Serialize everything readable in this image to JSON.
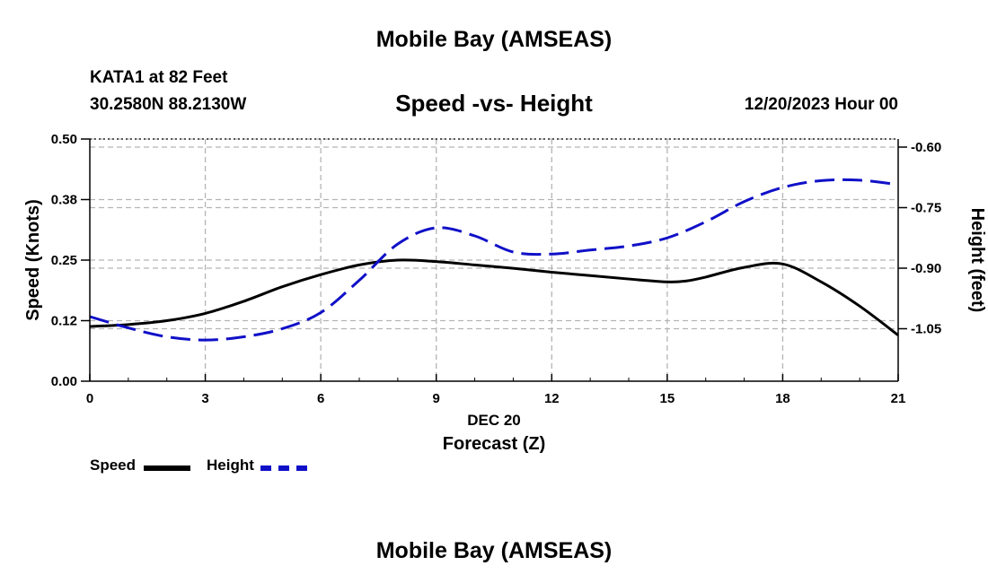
{
  "page": {
    "title_top": "Mobile Bay (AMSEAS)",
    "title_bottom": "Mobile Bay (AMSEAS)",
    "station": "KATA1 at 82 Feet",
    "coords": "30.2580N  88.2130W",
    "chart_title": "Speed -vs- Height",
    "date": "12/20/2023 Hour 00"
  },
  "legend": {
    "speed_label": "Speed",
    "height_label": "Height"
  },
  "colors": {
    "speed": "#000000",
    "height": "#1010c8",
    "grid": "#b4b4b4"
  },
  "chart_data": {
    "type": "line",
    "title": "Speed -vs- Height",
    "xlabel": "Forecast (Z)",
    "xsublabel": "DEC 20",
    "ylabel": "Speed (Knots)",
    "y2label": "Height (feet)",
    "xlim": [
      0,
      21
    ],
    "ylim": [
      0,
      0.5
    ],
    "y2lim": [
      -1.18,
      -0.58
    ],
    "x_ticks": [
      0,
      3,
      6,
      9,
      12,
      15,
      18,
      21
    ],
    "x_tick_labels": [
      "0",
      "3",
      "6",
      "9",
      "12",
      "15",
      "18",
      "21"
    ],
    "y_ticks": [
      0,
      0.125,
      0.25,
      0.375,
      0.5
    ],
    "y_tick_labels": [
      "0.00",
      "0.12",
      "0.25",
      "0.38",
      "0.50"
    ],
    "y2_ticks": [
      -1.05,
      -0.9,
      -0.75,
      -0.6
    ],
    "y2_tick_labels": [
      "-1.05",
      "-0.90",
      "-0.75",
      "-0.60"
    ],
    "grid": true,
    "series": [
      {
        "name": "Speed",
        "axis": "left",
        "style": "solid",
        "x": [
          0,
          1,
          2,
          3,
          4,
          5,
          6,
          7,
          8,
          9,
          10,
          11,
          12,
          13,
          14,
          15,
          15.5,
          16,
          17,
          18,
          19,
          20,
          21
        ],
        "values": [
          0.113,
          0.117,
          0.125,
          0.14,
          0.165,
          0.195,
          0.22,
          0.24,
          0.25,
          0.247,
          0.24,
          0.233,
          0.225,
          0.218,
          0.211,
          0.205,
          0.207,
          0.215,
          0.235,
          0.242,
          0.205,
          0.155,
          0.095
        ]
      },
      {
        "name": "Height",
        "axis": "right",
        "style": "dashed",
        "x": [
          0,
          1,
          2,
          3,
          4,
          5,
          6,
          7,
          8,
          9,
          10,
          11,
          12,
          13,
          14,
          15,
          16,
          17,
          18,
          19,
          20,
          21
        ],
        "values": [
          -1.02,
          -1.048,
          -1.07,
          -1.078,
          -1.07,
          -1.05,
          -1.01,
          -0.93,
          -0.84,
          -0.8,
          -0.82,
          -0.86,
          -0.865,
          -0.855,
          -0.845,
          -0.825,
          -0.785,
          -0.735,
          -0.7,
          -0.683,
          -0.682,
          -0.693
        ]
      }
    ]
  }
}
